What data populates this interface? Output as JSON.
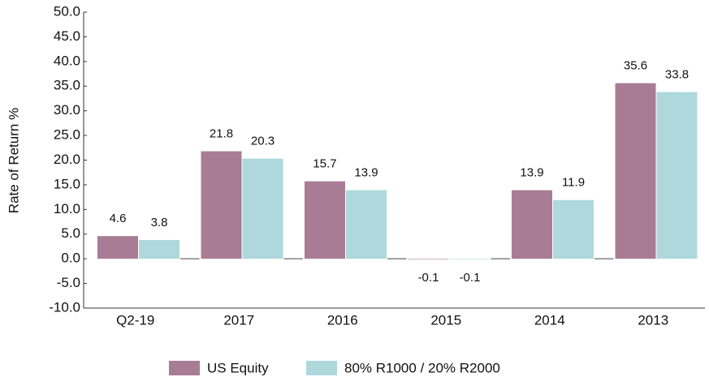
{
  "chart_data": {
    "type": "bar",
    "y_label": "Rate of Return %",
    "categories": [
      "Q2-19",
      "2017",
      "2016",
      "2015",
      "2014",
      "2013"
    ],
    "series": [
      {
        "name": "US Equity",
        "color": "#a87c94",
        "values": [
          4.6,
          21.8,
          15.7,
          -0.1,
          13.9,
          35.6
        ]
      },
      {
        "name": "80% R1000 / 20% R2000",
        "color": "#aed8dc",
        "values": [
          3.8,
          20.3,
          13.9,
          -0.1,
          11.9,
          33.8
        ]
      }
    ],
    "ylim": [
      -10,
      50
    ],
    "yticks": [
      {
        "value": -10,
        "label": "-10.0"
      },
      {
        "value": -5,
        "label": "-5.0"
      },
      {
        "value": 0,
        "label": "0.0"
      },
      {
        "value": 5,
        "label": "5.0"
      },
      {
        "value": 10,
        "label": "10.0"
      },
      {
        "value": 15,
        "label": "15.0"
      },
      {
        "value": 20,
        "label": "20.0"
      },
      {
        "value": 25,
        "label": "25.0"
      },
      {
        "value": 30,
        "label": "30.0"
      },
      {
        "value": 35,
        "label": "35.0"
      },
      {
        "value": 40,
        "label": "40.0"
      },
      {
        "value": 45,
        "label": "45.0"
      },
      {
        "value": 50,
        "label": "50.0"
      }
    ],
    "legend": "bottom"
  }
}
